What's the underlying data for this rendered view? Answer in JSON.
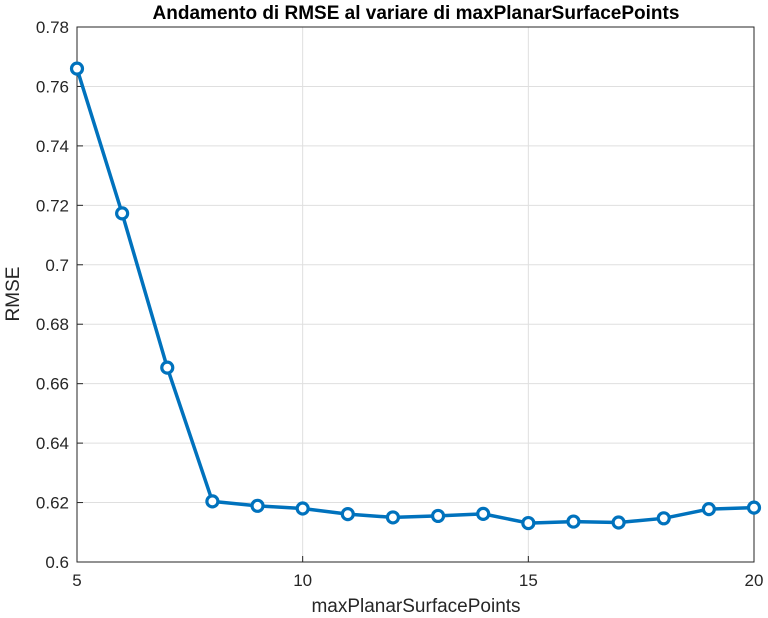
{
  "chart_data": {
    "type": "line",
    "title": "Andamento di RMSE al variare di maxPlanarSurfacePoints",
    "xlabel": "maxPlanarSurfacePoints",
    "ylabel": "RMSE",
    "xlim": [
      5,
      20
    ],
    "ylim": [
      0.6,
      0.78
    ],
    "xticks": [
      "5",
      "10",
      "15",
      "20"
    ],
    "yticks": [
      "0.6",
      "0.62",
      "0.64",
      "0.66",
      "0.68",
      "0.7",
      "0.72",
      "0.74",
      "0.76",
      "0.78"
    ],
    "grid": true,
    "marker": "circle",
    "color": "#0072bd",
    "x": [
      5,
      6,
      7,
      8,
      9,
      10,
      11,
      12,
      13,
      14,
      15,
      16,
      17,
      18,
      19,
      20
    ],
    "y": [
      0.766,
      0.7173,
      0.6654,
      0.6204,
      0.6189,
      0.618,
      0.6161,
      0.615,
      0.6155,
      0.6162,
      0.6131,
      0.6136,
      0.6133,
      0.6147,
      0.6178,
      0.6183
    ]
  }
}
